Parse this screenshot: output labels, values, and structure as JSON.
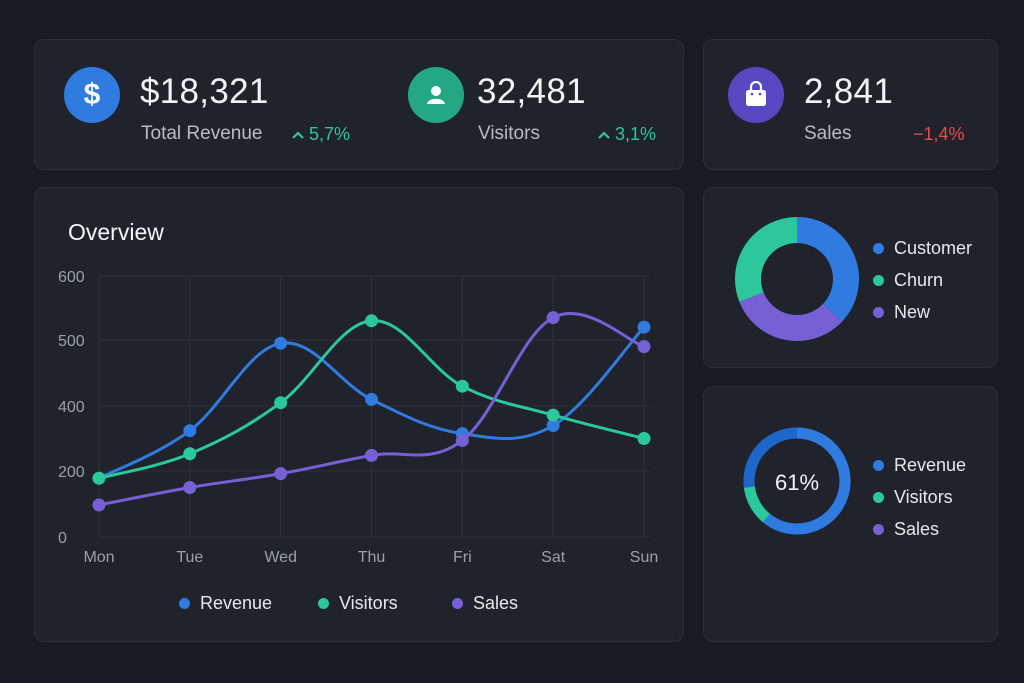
{
  "colors": {
    "revenue": "#2f7be0",
    "visitors": "#2cc79a",
    "sales": "#7560d6",
    "up": "#2cc79a",
    "down": "#e0504a",
    "grid": "#2e323b",
    "axis_text": "#9aa0ab"
  },
  "stats": {
    "revenue": {
      "icon": "dollar-icon",
      "value": "$18,321",
      "label": "Total Revenue",
      "delta": "5,7%",
      "trend": "up"
    },
    "visitors": {
      "icon": "user-icon",
      "value": "32,481",
      "label": "Visitors",
      "delta": "3,1%",
      "trend": "up"
    },
    "sales": {
      "icon": "shopping-bag-icon",
      "value": "2,841",
      "label": "Sales",
      "delta": "−1,4%",
      "trend": "down"
    }
  },
  "overview": {
    "title": "Overview",
    "legend": [
      "Revenue",
      "Visitors",
      "Sales"
    ]
  },
  "chart_data": [
    {
      "type": "line",
      "title": "Overview",
      "categories": [
        "Mon",
        "Tue",
        "Wed",
        "Thu",
        "Fri",
        "Sat",
        "Sun"
      ],
      "yticks": [
        "0",
        "200",
        "400",
        "500",
        "600"
      ],
      "series": [
        {
          "name": "Revenue",
          "values": [
            178,
            324,
            495,
            410,
            315,
            340,
            520
          ]
        },
        {
          "name": "Visitors",
          "values": [
            178,
            253,
            405,
            530,
            430,
            372,
            300
          ]
        },
        {
          "name": "Sales",
          "values": [
            97,
            150,
            192,
            248,
            294,
            535,
            490
          ]
        }
      ]
    },
    {
      "type": "pie",
      "variant": "donut",
      "labels": [
        "Customer",
        "Churn",
        "New"
      ],
      "values": [
        37,
        31,
        32
      ]
    },
    {
      "type": "pie",
      "variant": "progress-ring",
      "center_label": "61%",
      "labels": [
        "Revenue",
        "Visitors",
        "Sales"
      ],
      "values": [
        61,
        12,
        27
      ]
    }
  ],
  "donut": {
    "legend": [
      "Customer",
      "Churn",
      "New"
    ]
  },
  "ring": {
    "center": "61%",
    "legend": [
      "Revenue",
      "Visitors",
      "Sales"
    ]
  }
}
